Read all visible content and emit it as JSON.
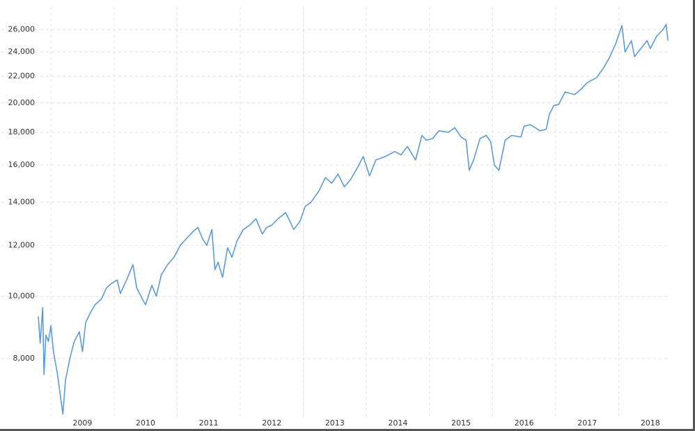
{
  "chart_data": {
    "type": "line",
    "color": "#5b9bd5",
    "yscale": "log",
    "grid": true,
    "xlim": [
      2008.8,
      2018.8
    ],
    "xticks": [
      2009,
      2010,
      2011,
      2012,
      2013,
      2014,
      2015,
      2016,
      2017,
      2018
    ],
    "ylim": [
      6500,
      28000
    ],
    "yticks": [
      {
        "value": 8000,
        "label": "8,000"
      },
      {
        "value": 10000,
        "label": "10,000"
      },
      {
        "value": 12000,
        "label": "12,000"
      },
      {
        "value": 14000,
        "label": "14,000"
      },
      {
        "value": 16000,
        "label": "16,000"
      },
      {
        "value": 18000,
        "label": "18,000"
      },
      {
        "value": 20000,
        "label": "20,000"
      },
      {
        "value": 22000,
        "label": "22,000"
      },
      {
        "value": 24000,
        "label": "24,000"
      },
      {
        "value": 26000,
        "label": "26,000"
      }
    ],
    "x": [
      2008.8,
      2008.83,
      2008.87,
      2008.89,
      2008.92,
      2008.96,
      2009.0,
      2009.04,
      2009.1,
      2009.15,
      2009.19,
      2009.23,
      2009.3,
      2009.37,
      2009.45,
      2009.5,
      2009.55,
      2009.62,
      2009.7,
      2009.8,
      2009.88,
      2009.95,
      2010.05,
      2010.1,
      2010.2,
      2010.3,
      2010.36,
      2010.45,
      2010.5,
      2010.6,
      2010.67,
      2010.75,
      2010.85,
      2010.95,
      2011.05,
      2011.15,
      2011.25,
      2011.33,
      2011.4,
      2011.47,
      2011.55,
      2011.6,
      2011.65,
      2011.72,
      2011.8,
      2011.87,
      2011.95,
      2012.05,
      2012.15,
      2012.25,
      2012.35,
      2012.42,
      2012.5,
      2012.6,
      2012.72,
      2012.85,
      2012.95,
      2013.03,
      2013.12,
      2013.25,
      2013.35,
      2013.45,
      2013.55,
      2013.65,
      2013.75,
      2013.85,
      2013.95,
      2014.05,
      2014.15,
      2014.3,
      2014.45,
      2014.55,
      2014.65,
      2014.78,
      2014.88,
      2014.95,
      2015.05,
      2015.15,
      2015.3,
      2015.4,
      2015.5,
      2015.58,
      2015.63,
      2015.7,
      2015.8,
      2015.9,
      2015.97,
      2016.03,
      2016.1,
      2016.2,
      2016.3,
      2016.45,
      2016.5,
      2016.6,
      2016.75,
      2016.85,
      2016.9,
      2016.97,
      2017.05,
      2017.15,
      2017.3,
      2017.4,
      2017.5,
      2017.65,
      2017.75,
      2017.85,
      2017.95,
      2018.05,
      2018.1,
      2018.2,
      2018.25,
      2018.35,
      2018.45,
      2018.5,
      2018.6,
      2018.7,
      2018.75,
      2018.78
    ],
    "values": [
      9300,
      8450,
      9600,
      7550,
      8700,
      8500,
      9000,
      8200,
      7600,
      7000,
      6550,
      7400,
      8000,
      8500,
      8800,
      8200,
      9100,
      9400,
      9700,
      9900,
      10300,
      10450,
      10600,
      10100,
      10600,
      11200,
      10300,
      9900,
      9700,
      10400,
      10000,
      10800,
      11200,
      11500,
      12000,
      12300,
      12600,
      12800,
      12300,
      12000,
      12700,
      11000,
      11300,
      10700,
      11900,
      11500,
      12200,
      12700,
      12900,
      13200,
      12500,
      12800,
      12900,
      13200,
      13500,
      12700,
      13100,
      13800,
      14000,
      14600,
      15300,
      15000,
      15500,
      14800,
      15200,
      15800,
      16500,
      15400,
      16300,
      16500,
      16800,
      16600,
      17100,
      16300,
      17800,
      17500,
      17600,
      18100,
      18000,
      18300,
      17700,
      17500,
      15700,
      16300,
      17600,
      17800,
      17400,
      16000,
      15700,
      17500,
      17800,
      17700,
      18400,
      18500,
      18100,
      18200,
      19200,
      19800,
      19900,
      20800,
      20600,
      21000,
      21500,
      21900,
      22600,
      23500,
      24700,
      26400,
      24000,
      25000,
      23600,
      24300,
      25000,
      24300,
      25400,
      26000,
      26500,
      25000
    ]
  }
}
